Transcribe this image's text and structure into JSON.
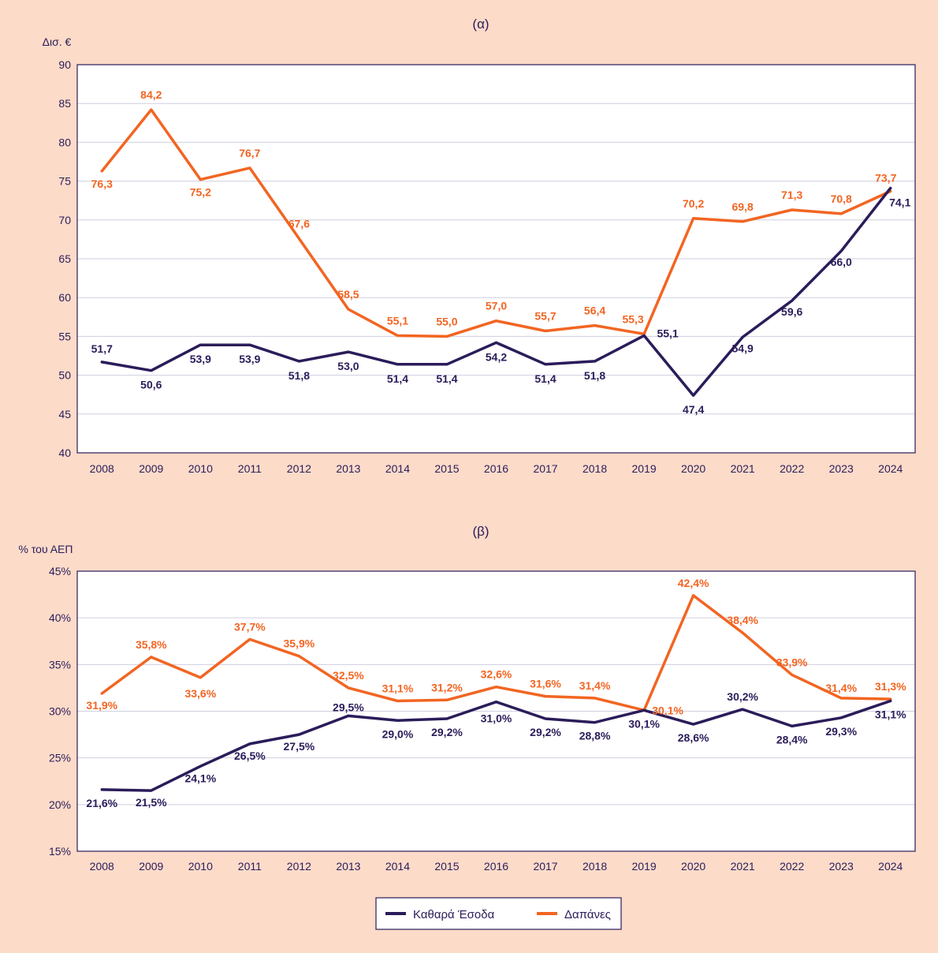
{
  "colors": {
    "background": "#FDDBC9",
    "plot_background": "#FFFFFF",
    "revenue": "#2B1C5A",
    "expenditure": "#F26522",
    "frame": "#2B1C5A",
    "grid": "#CFCFE0"
  },
  "legend": {
    "revenue_label": "Καθαρά Έσοδα",
    "expenditure_label": "Δαπάνες"
  },
  "chart_data": [
    {
      "type": "line",
      "title": "(α)",
      "ylabel": "Δισ. €",
      "ylim": [
        40,
        90
      ],
      "yticks": [
        "40",
        "45",
        "50",
        "55",
        "60",
        "65",
        "70",
        "75",
        "80",
        "85",
        "90"
      ],
      "grid": true,
      "categories": [
        "2008",
        "2009",
        "2010",
        "2011",
        "2012",
        "2013",
        "2014",
        "2015",
        "2016",
        "2017",
        "2018",
        "2019",
        "2020",
        "2021",
        "2022",
        "2023",
        "2024"
      ],
      "series": [
        {
          "name": "Καθαρά Έσοδα",
          "values": [
            51.7,
            50.6,
            53.9,
            53.9,
            51.8,
            53.0,
            51.4,
            51.4,
            54.2,
            51.4,
            51.8,
            55.1,
            47.4,
            54.9,
            59.6,
            66.0,
            74.1
          ],
          "labels": [
            "51,7",
            "50,6",
            "53,9",
            "53,9",
            "51,8",
            "53,0",
            "51,4",
            "51,4",
            "54,2",
            "51,4",
            "51,8",
            "55,1",
            "47,4",
            "54,9",
            "59,6",
            "66,0",
            "74,1"
          ]
        },
        {
          "name": "Δαπάνες",
          "values": [
            76.3,
            84.2,
            75.2,
            76.7,
            67.6,
            58.5,
            55.1,
            55.0,
            57.0,
            55.7,
            56.4,
            55.3,
            70.2,
            69.8,
            71.3,
            70.8,
            73.7
          ],
          "labels": [
            "76,3",
            "84,2",
            "75,2",
            "76,7",
            "67,6",
            "58,5",
            "55,1",
            "55,0",
            "57,0",
            "55,7",
            "56,4",
            "55,3",
            "70,2",
            "69,8",
            "71,3",
            "70,8",
            "73,7"
          ]
        }
      ]
    },
    {
      "type": "line",
      "title": "(β)",
      "ylabel": "% του ΑΕΠ",
      "ylim": [
        15,
        45
      ],
      "yticks": [
        "15%",
        "20%",
        "25%",
        "30%",
        "35%",
        "40%",
        "45%"
      ],
      "grid": true,
      "categories": [
        "2008",
        "2009",
        "2010",
        "2011",
        "2012",
        "2013",
        "2014",
        "2015",
        "2016",
        "2017",
        "2018",
        "2019",
        "2020",
        "2021",
        "2022",
        "2023",
        "2024"
      ],
      "series": [
        {
          "name": "Καθαρά Έσοδα",
          "values": [
            21.6,
            21.5,
            24.1,
            26.5,
            27.5,
            29.5,
            29.0,
            29.2,
            31.0,
            29.2,
            28.8,
            30.1,
            28.6,
            30.2,
            28.4,
            29.3,
            31.1
          ],
          "labels": [
            "21,6%",
            "21,5%",
            "24,1%",
            "26,5%",
            "27,5%",
            "29,5%",
            "29,0%",
            "29,2%",
            "31,0%",
            "29,2%",
            "28,8%",
            "30,1%",
            "28,6%",
            "30,2%",
            "28,4%",
            "29,3%",
            "31,1%"
          ]
        },
        {
          "name": "Δαπάνες",
          "values": [
            31.9,
            35.8,
            33.6,
            37.7,
            35.9,
            32.5,
            31.1,
            31.2,
            32.6,
            31.6,
            31.4,
            30.1,
            42.4,
            38.4,
            33.9,
            31.4,
            31.3
          ],
          "labels": [
            "31,9%",
            "35,8%",
            "33,6%",
            "37,7%",
            "35,9%",
            "32,5%",
            "31,1%",
            "31,2%",
            "32,6%",
            "31,6%",
            "31,4%",
            "30,1%",
            "42,4%",
            "38,4%",
            "33,9%",
            "31,4%",
            "31,3%"
          ]
        }
      ]
    }
  ]
}
